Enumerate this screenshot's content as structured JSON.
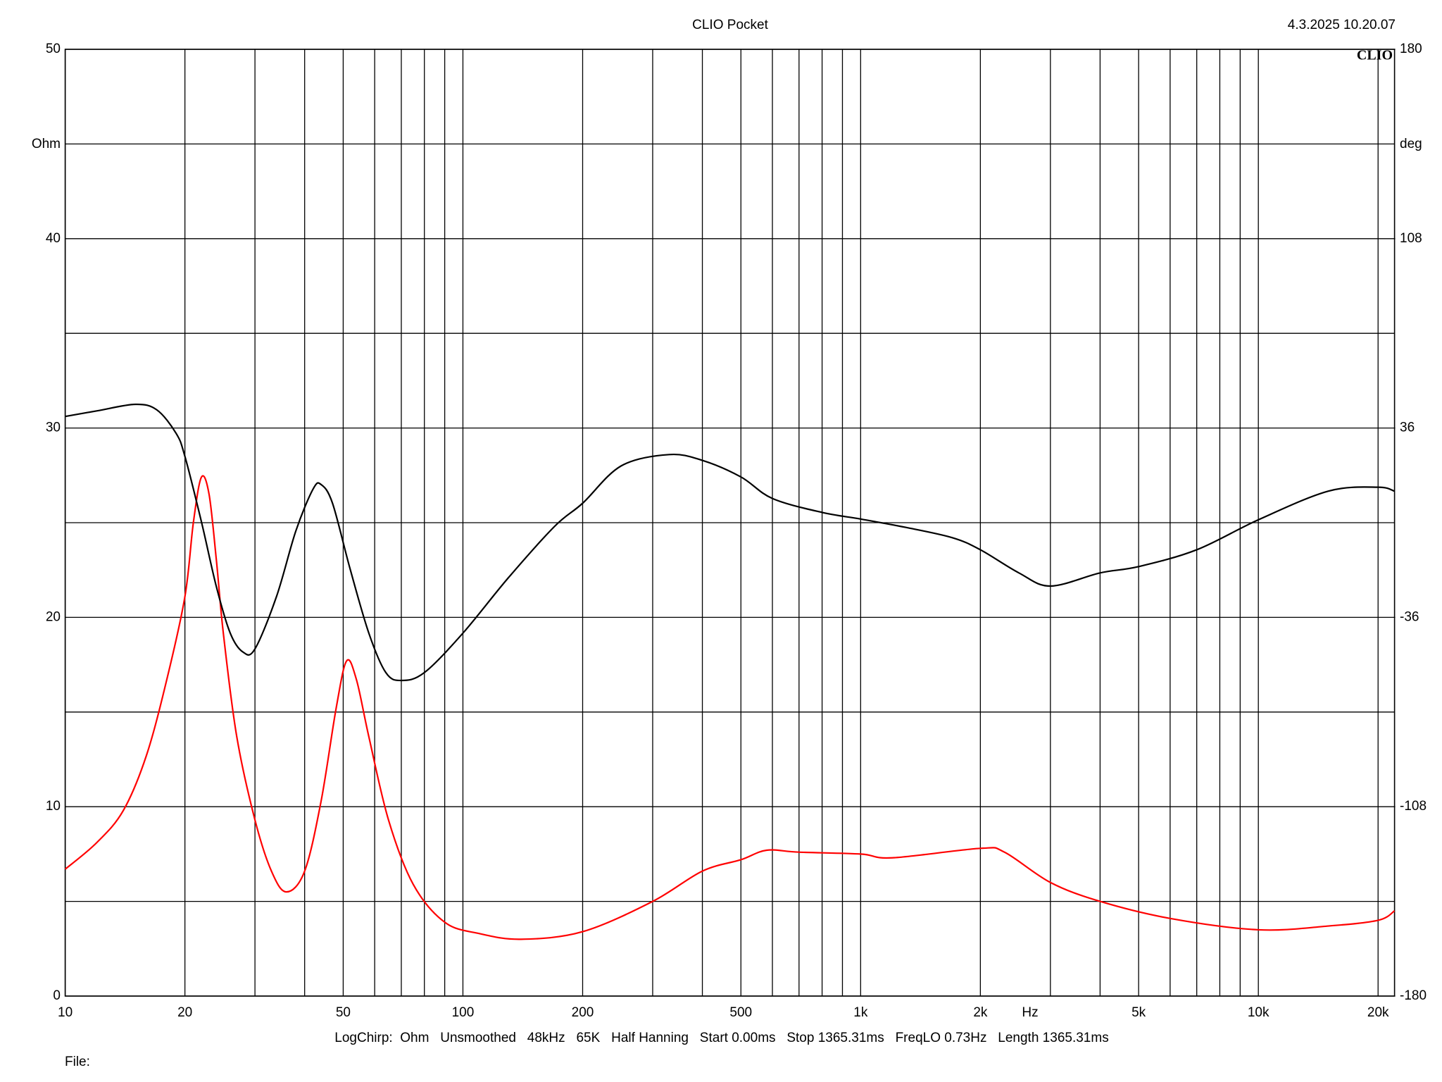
{
  "chart_data": {
    "type": "line",
    "title": "CLIO Pocket",
    "timestamp": "4.3.2025 10.20.07",
    "logo": "CLIO",
    "y_label": "Ohm",
    "y2_label": "deg",
    "x_label": "Hz",
    "footer": "LogChirp:  Ohm   Unsmoothed   48kHz   65K   Half Hanning   Start 0.00ms   Stop 1365.31ms   FreqLO 0.73Hz   Length 1365.31ms",
    "file_label": "File:",
    "log_x": true,
    "grid": true,
    "xlim": [
      10,
      22000
    ],
    "xticks": [
      10,
      20,
      50,
      100,
      200,
      500,
      {
        "value": 1000,
        "label": "1k"
      },
      {
        "value": 2000,
        "label": "2k"
      },
      {
        "value": 5000,
        "label": "5k"
      },
      {
        "value": 10000,
        "label": "10k"
      },
      {
        "value": 20000,
        "label": "20k"
      }
    ],
    "xgrid_minor": [
      30,
      40,
      60,
      70,
      80,
      90,
      300,
      400,
      600,
      700,
      800,
      900,
      3000,
      4000,
      6000,
      7000,
      8000,
      9000
    ],
    "ylim": [
      0,
      50
    ],
    "yticks": [
      0,
      10,
      20,
      30,
      40,
      50
    ],
    "ygrid_minor": [
      5,
      15,
      25,
      35,
      45
    ],
    "y2lim": [
      -180,
      180
    ],
    "y2ticks": [
      -180,
      -108,
      -36,
      36,
      108,
      180
    ],
    "series": [
      {
        "color": "#ff0000",
        "x": [
          10,
          12,
          14,
          16,
          18,
          20,
          21,
          22,
          23,
          24,
          25,
          27,
          30,
          33,
          36,
          40,
          44,
          48,
          51,
          54,
          58,
          65,
          75,
          90,
          110,
          140,
          200,
          300,
          400,
          500,
          580,
          700,
          1000,
          1200,
          2000,
          2300,
          3000,
          4000,
          6000,
          10000,
          15000,
          20000,
          22000
        ],
        "values": [
          6.7,
          8.1,
          9.8,
          12.7,
          16.7,
          21.1,
          25.0,
          27.4,
          26.5,
          23.0,
          19.1,
          13.7,
          9.3,
          6.6,
          5.5,
          6.6,
          10.3,
          15.2,
          17.7,
          16.7,
          13.7,
          9.3,
          5.9,
          3.9,
          3.3,
          3.0,
          3.4,
          5.0,
          6.6,
          7.2,
          7.7,
          7.6,
          7.5,
          7.3,
          7.8,
          7.6,
          6.0,
          5.0,
          4.1,
          3.5,
          3.7,
          4.0,
          4.5
        ]
      },
      {
        "color": "#000000",
        "axis": "y2",
        "x": [
          10,
          12,
          15,
          17,
          19,
          20,
          22,
          24,
          26,
          28,
          30,
          34,
          38,
          42,
          44,
          47,
          52,
          58,
          64,
          70,
          80,
          100,
          130,
          170,
          200,
          250,
          330,
          400,
          500,
          600,
          800,
          1000,
          1300,
          1700,
          2000,
          2500,
          3000,
          4000,
          5000,
          7000,
          10000,
          15000,
          20000,
          22000
        ],
        "values": [
          40.4,
          42.5,
          45.0,
          42.9,
          34.0,
          25.2,
          0.4,
          -24.4,
          -42.0,
          -49.2,
          -48.0,
          -28.0,
          -3.2,
          12.8,
          14.5,
          7.4,
          -17.4,
          -42.0,
          -57.0,
          -60.0,
          -57.0,
          -42.0,
          -21.0,
          -1.4,
          7.4,
          21.6,
          25.9,
          23.7,
          17.4,
          9.2,
          3.9,
          1.4,
          -1.8,
          -5.7,
          -10.3,
          -19.1,
          -24.1,
          -19.1,
          -16.7,
          -10.3,
          1.1,
          12.0,
          13.5,
          12.0
        ]
      }
    ]
  }
}
